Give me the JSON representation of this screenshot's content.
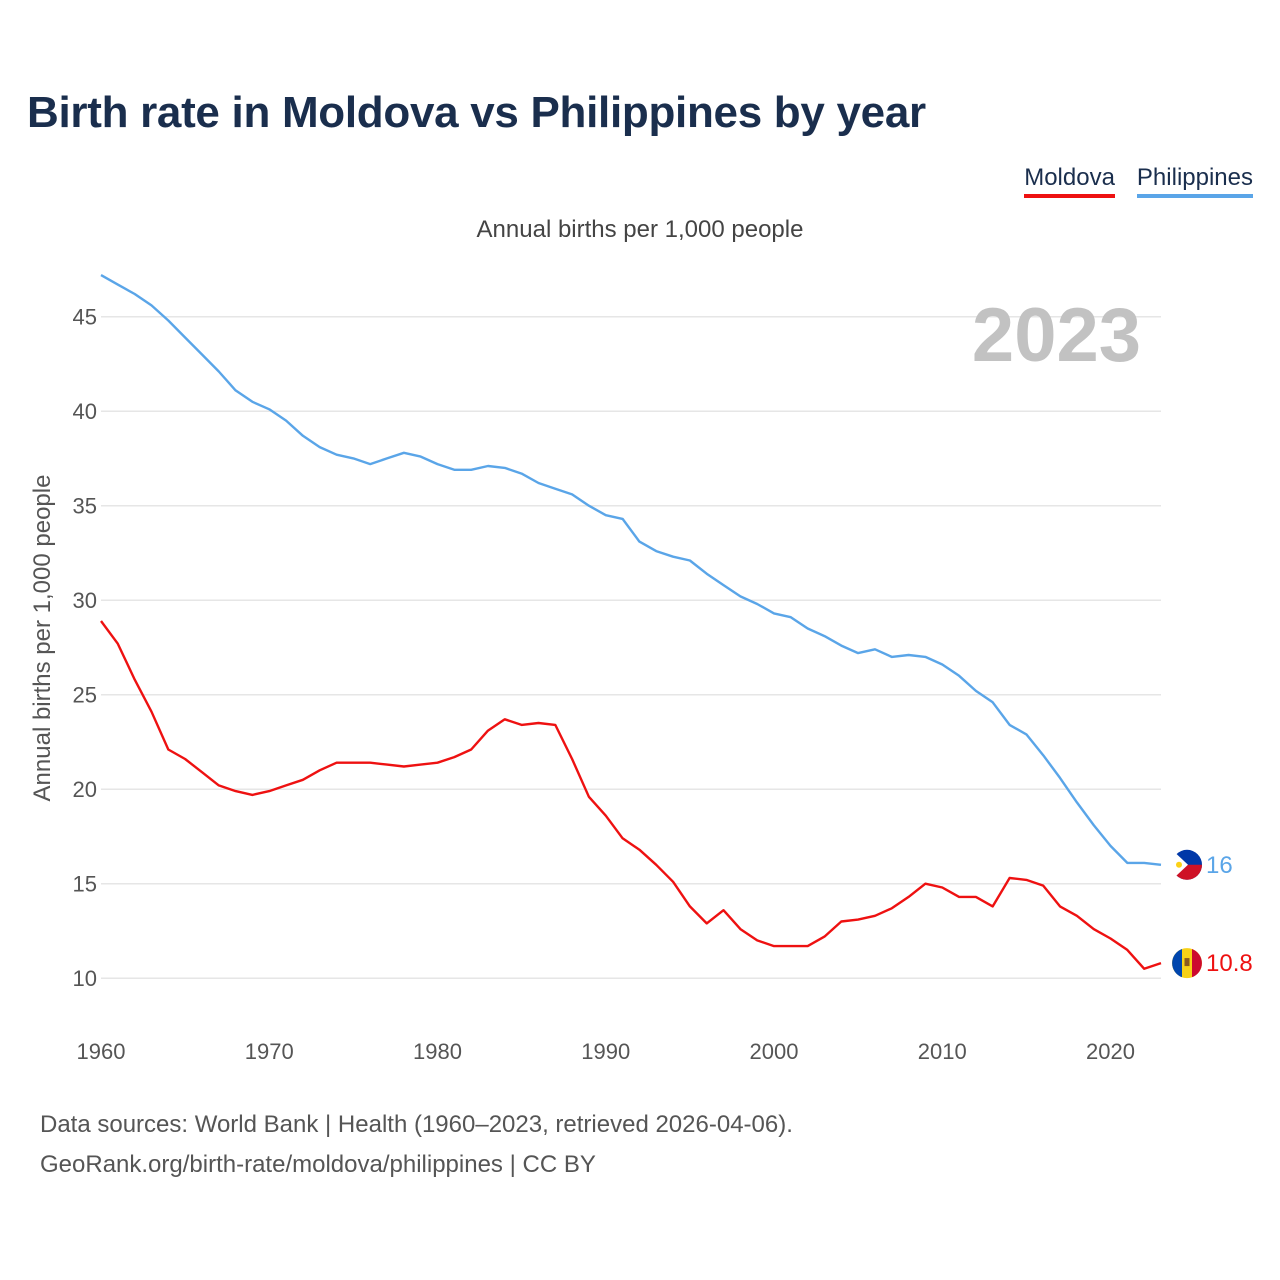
{
  "title": "Birth rate in Moldova vs Philippines by year",
  "legend": {
    "moldova": "Moldova",
    "philippines": "Philippines"
  },
  "subtitle": "Annual births per 1,000 people",
  "footer": {
    "line1": "Data sources: World Bank | Health (1960–2023, retrieved 2026-04-06).",
    "line2": "GeoRank.org/birth-rate/moldova/philippines | CC BY"
  },
  "colors": {
    "moldova": "#ee1111",
    "philippines": "#5aa5e8",
    "grid": "#e6e6e6"
  },
  "chart_data": {
    "type": "line",
    "title": "Birth rate in Moldova vs Philippines by year",
    "ylabel": "Annual births per 1,000 people",
    "xlabel": "",
    "year_label": "2023",
    "xlim": [
      1960,
      2023
    ],
    "ylim": [
      8,
      48
    ],
    "x_ticks": [
      1960,
      1970,
      1980,
      1990,
      2000,
      2010,
      2020
    ],
    "y_ticks": [
      10,
      15,
      20,
      25,
      30,
      35,
      40,
      45
    ],
    "x": [
      1960,
      1961,
      1962,
      1963,
      1964,
      1965,
      1966,
      1967,
      1968,
      1969,
      1970,
      1971,
      1972,
      1973,
      1974,
      1975,
      1976,
      1977,
      1978,
      1979,
      1980,
      1981,
      1982,
      1983,
      1984,
      1985,
      1986,
      1987,
      1988,
      1989,
      1990,
      1991,
      1992,
      1993,
      1994,
      1995,
      1996,
      1997,
      1998,
      1999,
      2000,
      2001,
      2002,
      2003,
      2004,
      2005,
      2006,
      2007,
      2008,
      2009,
      2010,
      2011,
      2012,
      2013,
      2014,
      2015,
      2016,
      2017,
      2018,
      2019,
      2020,
      2021,
      2022,
      2023
    ],
    "series": [
      {
        "name": "Moldova",
        "color": "#ee1111",
        "end_label": "10.8",
        "values": [
          28.9,
          27.7,
          25.8,
          24.1,
          22.1,
          21.6,
          20.9,
          20.2,
          19.9,
          19.7,
          19.9,
          20.2,
          20.5,
          21.0,
          21.4,
          21.4,
          21.4,
          21.3,
          21.2,
          21.3,
          21.4,
          21.7,
          22.1,
          23.1,
          23.7,
          23.4,
          23.5,
          23.4,
          21.6,
          19.6,
          18.6,
          17.4,
          16.8,
          16.0,
          15.1,
          13.8,
          12.9,
          13.6,
          12.6,
          12.0,
          11.7,
          11.7,
          11.7,
          12.2,
          13.0,
          13.1,
          13.3,
          13.7,
          14.3,
          15.0,
          14.8,
          14.3,
          14.3,
          13.8,
          15.3,
          15.2,
          14.9,
          13.8,
          13.3,
          12.6,
          12.1,
          11.5,
          10.5,
          10.8
        ]
      },
      {
        "name": "Philippines",
        "color": "#5aa5e8",
        "end_label": "16",
        "values": [
          47.2,
          46.7,
          46.2,
          45.6,
          44.8,
          43.9,
          43.0,
          42.1,
          41.1,
          40.5,
          40.1,
          39.5,
          38.7,
          38.1,
          37.7,
          37.5,
          37.2,
          37.5,
          37.8,
          37.6,
          37.2,
          36.9,
          36.9,
          37.1,
          37.0,
          36.7,
          36.2,
          35.9,
          35.6,
          35.0,
          34.5,
          34.3,
          33.1,
          32.6,
          32.3,
          32.1,
          31.4,
          30.8,
          30.2,
          29.8,
          29.3,
          29.1,
          28.5,
          28.1,
          27.6,
          27.2,
          27.4,
          27.0,
          27.1,
          27.0,
          26.6,
          26.0,
          25.2,
          24.6,
          23.4,
          22.9,
          21.8,
          20.6,
          19.3,
          18.1,
          17.0,
          16.1,
          16.1,
          16.0
        ]
      }
    ]
  }
}
